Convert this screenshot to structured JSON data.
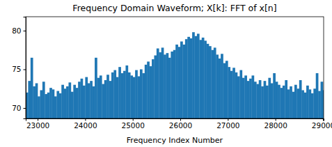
{
  "chart_data": {
    "type": "bar",
    "title": "Frequency Domain Waveform; X[k]: FFT of x[n]",
    "x_label": "Frequency Index Number",
    "color": "#1f77b4",
    "x": [
      22750,
      22800,
      22850,
      22900,
      22950,
      23000,
      23050,
      23100,
      23150,
      23200,
      23250,
      23300,
      23350,
      23400,
      23450,
      23500,
      23550,
      23600,
      23650,
      23700,
      23750,
      23800,
      23850,
      23900,
      23950,
      24000,
      24050,
      24100,
      24150,
      24200,
      24250,
      24300,
      24350,
      24400,
      24450,
      24500,
      24550,
      24600,
      24650,
      24700,
      24750,
      24800,
      24850,
      24900,
      24950,
      25000,
      25050,
      25100,
      25150,
      25200,
      25250,
      25300,
      25350,
      25400,
      25450,
      25500,
      25550,
      25600,
      25650,
      25700,
      25750,
      25800,
      25850,
      25900,
      25950,
      26000,
      26050,
      26100,
      26150,
      26200,
      26250,
      26300,
      26350,
      26400,
      26450,
      26500,
      26550,
      26600,
      26650,
      26700,
      26750,
      26800,
      26850,
      26900,
      26950,
      27000,
      27050,
      27100,
      27150,
      27200,
      27250,
      27300,
      27350,
      27400,
      27450,
      27500,
      27550,
      27600,
      27650,
      27700,
      27750,
      27800,
      27850,
      27900,
      27950,
      28000,
      28050,
      28100,
      28150,
      28200,
      28250,
      28300,
      28350,
      28400,
      28450,
      28500,
      28550,
      28600,
      28650,
      28700,
      28750,
      28800,
      28850,
      28900,
      28950,
      29000
    ],
    "values": [
      72.0,
      73.5,
      76.5,
      72.8,
      73.2,
      71.5,
      72.3,
      73.4,
      71.8,
      72.0,
      72.6,
      72.4,
      71.5,
      72.2,
      71.9,
      73.0,
      72.5,
      72.8,
      73.3,
      72.1,
      73.0,
      72.6,
      73.4,
      73.8,
      72.9,
      74.0,
      73.2,
      73.5,
      72.8,
      76.5,
      73.9,
      74.2,
      73.1,
      73.6,
      74.3,
      73.5,
      74.6,
      74.9,
      74.0,
      75.3,
      74.5,
      74.8,
      75.5,
      74.6,
      74.2,
      74.0,
      74.9,
      74.1,
      75.0,
      74.5,
      75.6,
      76.0,
      75.4,
      76.3,
      76.8,
      77.7,
      77.2,
      77.8,
      76.9,
      77.1,
      76.5,
      77.3,
      77.5,
      78.2,
      77.9,
      78.6,
      78.2,
      78.9,
      79.2,
      79.0,
      79.8,
      79.3,
      79.6,
      78.8,
      79.1,
      78.7,
      78.3,
      78.0,
      77.5,
      77.8,
      76.9,
      76.4,
      77.0,
      75.8,
      76.1,
      75.3,
      74.8,
      75.2,
      74.6,
      74.1,
      74.9,
      73.9,
      74.2,
      73.5,
      73.8,
      74.2,
      73.4,
      73.1,
      73.6,
      72.8,
      73.5,
      72.9,
      73.9,
      73.2,
      74.5,
      73.4,
      73.0,
      72.6,
      72.9,
      73.6,
      72.4,
      72.8,
      72.1,
      73.0,
      72.5,
      73.6,
      72.3,
      72.0,
      72.9,
      72.4,
      71.9,
      72.5,
      74.5,
      72.2,
      73.4,
      72.3
    ],
    "xlim": [
      22750,
      29015
    ],
    "ylim": [
      68.65,
      81.8
    ],
    "xticks": [
      23000,
      24000,
      25000,
      26000,
      27000,
      28000,
      29000
    ],
    "yticks": [
      70,
      75,
      80
    ]
  }
}
